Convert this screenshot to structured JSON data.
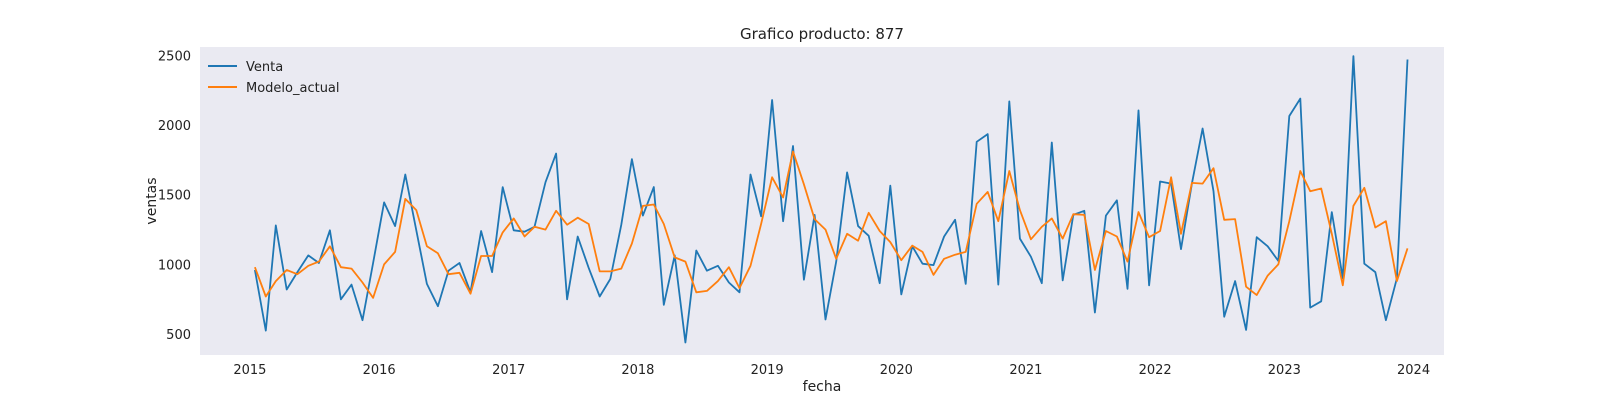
{
  "chart_data": {
    "type": "line",
    "title": "Grafico producto: 877",
    "xlabel": "fecha",
    "ylabel": "ventas",
    "xlim": [
      "2014-08-13",
      "2024-03-27"
    ],
    "ylim": [
      350,
      2560
    ],
    "x_ticks": [
      "2015",
      "2016",
      "2017",
      "2018",
      "2019",
      "2020",
      "2021",
      "2022",
      "2023",
      "2024"
    ],
    "y_ticks": [
      500,
      1000,
      1500,
      2000,
      2500
    ],
    "grid": false,
    "legend_position": "top-left",
    "start_month": "2015-01",
    "series": [
      {
        "name": "Venta",
        "color": "#1f77b4",
        "values": [
          960,
          525,
          1280,
          820,
          945,
          1065,
          1010,
          1245,
          750,
          855,
          600,
          1010,
          1445,
          1275,
          1645,
          1245,
          860,
          700,
          955,
          1010,
          800,
          1240,
          945,
          1555,
          1245,
          1235,
          1270,
          1590,
          1795,
          750,
          1200,
          975,
          770,
          895,
          1285,
          1755,
          1350,
          1555,
          710,
          1065,
          440,
          1100,
          955,
          990,
          870,
          800,
          1645,
          1345,
          2180,
          1310,
          1850,
          890,
          1355,
          605,
          1020,
          1660,
          1275,
          1205,
          865,
          1565,
          785,
          1130,
          1005,
          995,
          1200,
          1320,
          860,
          1880,
          1935,
          855,
          2170,
          1185,
          1055,
          865,
          1875,
          885,
          1355,
          1385,
          655,
          1350,
          1460,
          825,
          2105,
          850,
          1595,
          1580,
          1110,
          1580,
          1975,
          1525,
          625,
          880,
          530,
          1195,
          1130,
          1025,
          2065,
          2190,
          690,
          735,
          1375,
          900,
          2495,
          1005,
          945,
          600,
          900,
          2470
        ]
      },
      {
        "name": "Modelo_actual",
        "color": "#ff7f0e",
        "values": [
          980,
          770,
          880,
          960,
          930,
          990,
          1020,
          1130,
          980,
          970,
          870,
          760,
          1000,
          1090,
          1470,
          1390,
          1130,
          1080,
          930,
          940,
          790,
          1060,
          1060,
          1230,
          1330,
          1200,
          1270,
          1250,
          1385,
          1285,
          1335,
          1290,
          950,
          950,
          970,
          1150,
          1420,
          1430,
          1290,
          1050,
          1020,
          800,
          810,
          880,
          980,
          830,
          990,
          1290,
          1625,
          1480,
          1810,
          1575,
          1325,
          1250,
          1040,
          1220,
          1170,
          1370,
          1240,
          1160,
          1030,
          1135,
          1090,
          925,
          1040,
          1070,
          1090,
          1435,
          1520,
          1310,
          1670,
          1390,
          1180,
          1270,
          1330,
          1185,
          1360,
          1355,
          960,
          1240,
          1200,
          1020,
          1375,
          1195,
          1240,
          1625,
          1220,
          1585,
          1580,
          1690,
          1320,
          1325,
          840,
          780,
          920,
          1000,
          1310,
          1670,
          1525,
          1545,
          1220,
          850,
          1420,
          1550,
          1265,
          1310,
          880,
          1115
        ]
      }
    ]
  }
}
